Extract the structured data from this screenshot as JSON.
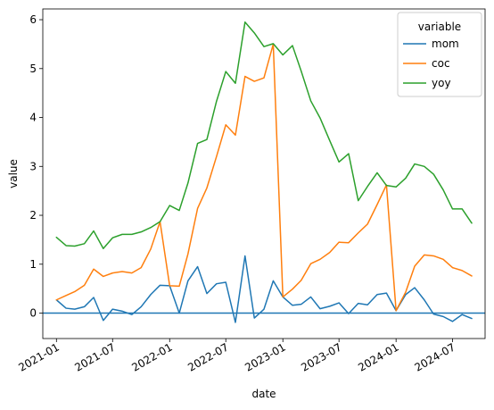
{
  "chart_data": {
    "type": "line",
    "xlabel": "date",
    "ylabel": "value",
    "xlim": [
      "2020-11-18",
      "2024-10-14"
    ],
    "ylim": [
      -0.52,
      6.22
    ],
    "x_ticks": [
      {
        "date": "2021-01-01",
        "label": "2021-01"
      },
      {
        "date": "2021-07-01",
        "label": "2021-07"
      },
      {
        "date": "2022-01-01",
        "label": "2022-01"
      },
      {
        "date": "2022-07-01",
        "label": "2022-07"
      },
      {
        "date": "2023-01-01",
        "label": "2023-01"
      },
      {
        "date": "2023-07-01",
        "label": "2023-07"
      },
      {
        "date": "2024-01-01",
        "label": "2024-01"
      },
      {
        "date": "2024-07-01",
        "label": "2024-07"
      }
    ],
    "y_ticks": [
      0,
      1,
      2,
      3,
      4,
      5,
      6
    ],
    "legend": {
      "title": "variable",
      "placement": "top-right"
    },
    "reference_line": {
      "y": 0,
      "color": "#1f77b4"
    },
    "x": [
      "2021-01",
      "2021-02",
      "2021-03",
      "2021-04",
      "2021-05",
      "2021-06",
      "2021-07",
      "2021-08",
      "2021-09",
      "2021-10",
      "2021-11",
      "2021-12",
      "2022-01",
      "2022-02",
      "2022-03",
      "2022-04",
      "2022-05",
      "2022-06",
      "2022-07",
      "2022-08",
      "2022-09",
      "2022-10",
      "2022-11",
      "2022-12",
      "2023-01",
      "2023-02",
      "2023-03",
      "2023-04",
      "2023-05",
      "2023-06",
      "2023-07",
      "2023-08",
      "2023-09",
      "2023-10",
      "2023-11",
      "2023-12",
      "2024-01",
      "2024-02",
      "2024-03",
      "2024-04",
      "2024-05",
      "2024-06",
      "2024-07",
      "2024-08",
      "2024-09"
    ],
    "series": [
      {
        "name": "mom",
        "color": "#1f77b4",
        "values": [
          0.27,
          0.1,
          0.08,
          0.13,
          0.32,
          -0.15,
          0.08,
          0.04,
          -0.03,
          0.13,
          0.38,
          0.57,
          0.56,
          0.0,
          0.66,
          0.95,
          0.4,
          0.6,
          0.63,
          -0.19,
          1.17,
          -0.1,
          0.08,
          0.66,
          0.33,
          0.16,
          0.18,
          0.33,
          0.09,
          0.14,
          0.21,
          -0.01,
          0.2,
          0.17,
          0.38,
          0.41,
          0.05,
          0.38,
          0.52,
          0.27,
          -0.02,
          -0.07,
          -0.17,
          -0.03,
          -0.11
        ]
      },
      {
        "name": "coc",
        "color": "#ff7f0e",
        "values": [
          0.27,
          0.36,
          0.44,
          0.57,
          0.9,
          0.75,
          0.82,
          0.85,
          0.82,
          0.93,
          1.31,
          1.87,
          0.56,
          0.55,
          1.21,
          2.14,
          2.56,
          3.2,
          3.85,
          3.64,
          4.84,
          4.74,
          4.81,
          5.5,
          0.33,
          0.49,
          0.67,
          1.01,
          1.1,
          1.24,
          1.45,
          1.44,
          1.64,
          1.82,
          2.22,
          2.62,
          0.05,
          0.43,
          0.96,
          1.19,
          1.17,
          1.1,
          0.93,
          0.87,
          0.76
        ]
      },
      {
        "name": "yoy",
        "color": "#2ca02c",
        "values": [
          1.55,
          1.38,
          1.37,
          1.42,
          1.68,
          1.32,
          1.54,
          1.61,
          1.61,
          1.66,
          1.75,
          1.87,
          2.2,
          2.1,
          2.66,
          3.47,
          3.55,
          4.33,
          4.94,
          4.7,
          5.95,
          5.73,
          5.45,
          5.51,
          5.28,
          5.47,
          4.95,
          4.34,
          3.99,
          3.53,
          3.09,
          3.26,
          2.3,
          2.59,
          2.87,
          2.61,
          2.58,
          2.76,
          3.05,
          3.0,
          2.84,
          2.52,
          2.13,
          2.13,
          1.84
        ]
      }
    ]
  }
}
